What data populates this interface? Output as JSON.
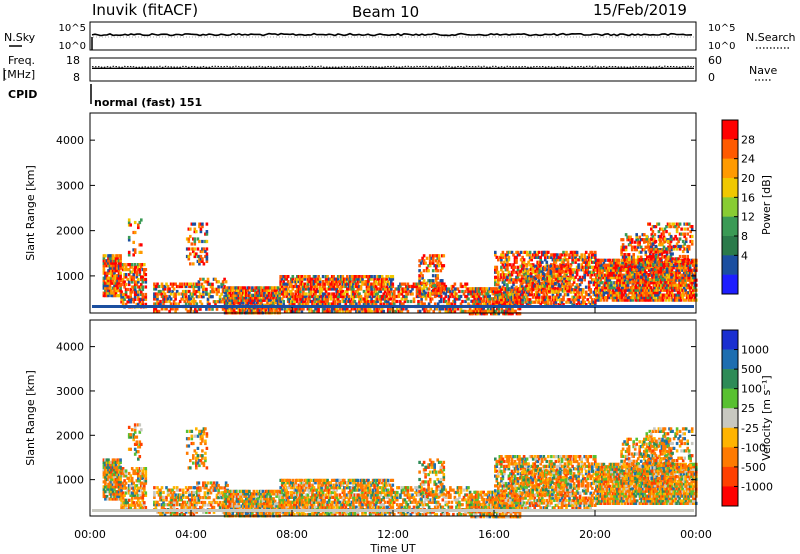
{
  "header": {
    "station": "Inuvik (fitACF)",
    "beam": "Beam 10",
    "date": "15/Feb/2019"
  },
  "chart_data": [
    {
      "type": "line",
      "name": "noise-panel",
      "left_label": "N.Sky",
      "right_label": "N.Search",
      "left_ticks": [
        "10^5",
        "10^0"
      ],
      "right_ticks": [
        "10^5",
        "10^0"
      ],
      "series_level": 0.55
    },
    {
      "type": "line",
      "name": "frequency-panel",
      "left_label_line1": "Freq.",
      "left_label_line2": "[MHz]",
      "right_label": "Nave",
      "left_ticks": [
        "18",
        "8"
      ],
      "right_ticks": [
        "60",
        "0"
      ],
      "freq_level": 0.55,
      "nave_level": 0.62
    },
    {
      "type": "table",
      "name": "cpid-panel",
      "left_label": "CPID",
      "value": "normal (fast) 151"
    },
    {
      "type": "heatmap",
      "name": "power",
      "ylabel": "Slant Range [km]",
      "yticks": [
        "4000",
        "3000",
        "2000",
        "1000"
      ],
      "yrange": [
        180,
        4600
      ],
      "colorbar_label": "Power [dB]",
      "colorbar_ticks": [
        "28",
        "24",
        "20",
        "16",
        "12",
        "8",
        "4"
      ],
      "colorbar_colors": [
        "#ff0000",
        "#ff5a00",
        "#ff9a00",
        "#f0c800",
        "#88cc33",
        "#3a9a55",
        "#2a7a4a",
        "#1b4fa0",
        "#1e1eff"
      ]
    },
    {
      "type": "heatmap",
      "name": "velocity",
      "ylabel": "Slant Range [km]",
      "yticks": [
        "4000",
        "3000",
        "2000",
        "1000"
      ],
      "yrange": [
        180,
        4600
      ],
      "xlabel": "Time UT",
      "xticks": [
        "00:00",
        "04:00",
        "08:00",
        "12:00",
        "16:00",
        "20:00",
        "00:00"
      ],
      "xrange_hours": [
        0,
        24
      ],
      "colorbar_label": "Velocity [m s⁻¹]",
      "colorbar_ticks": [
        "1000",
        "500",
        "100",
        "25",
        "-25",
        "-100",
        "-500",
        "-1000"
      ],
      "colorbar_colors": [
        "#1a2fd0",
        "#1e6eb0",
        "#2e8b57",
        "#58c030",
        "#c8c8c0",
        "#ffb400",
        "#ff7a00",
        "#ff4000",
        "#ff0000"
      ]
    }
  ]
}
